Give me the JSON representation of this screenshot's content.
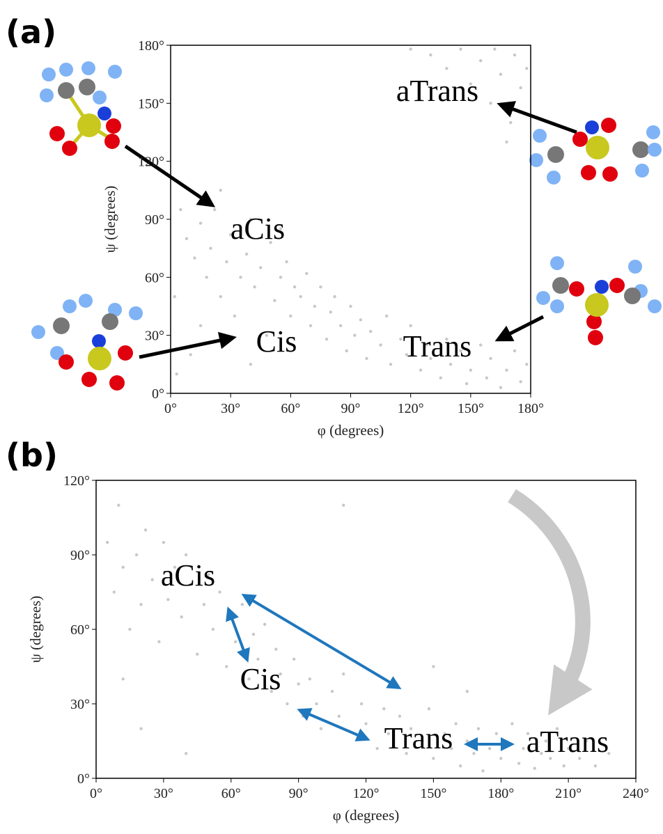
{
  "chart_data": [
    {
      "type": "scatter",
      "panel_label": "(a)",
      "x_label": "φ (degrees)",
      "y_label": "ψ (degrees)",
      "color": "#c8c8c8",
      "xlim": [
        0,
        180
      ],
      "ylim": [
        0,
        180
      ],
      "xticks": [
        {
          "value": 0,
          "label": "0°"
        },
        {
          "value": 30,
          "label": "30°"
        },
        {
          "value": 60,
          "label": "60°"
        },
        {
          "value": 90,
          "label": "90°"
        },
        {
          "value": 120,
          "label": "120°"
        },
        {
          "value": 150,
          "label": "150°"
        },
        {
          "value": 180,
          "label": "180°"
        }
      ],
      "yticks": [
        {
          "value": 0,
          "label": "0°"
        },
        {
          "value": 30,
          "label": "30°"
        },
        {
          "value": 60,
          "label": "60°"
        },
        {
          "value": 90,
          "label": "90°"
        },
        {
          "value": 120,
          "label": "120°"
        },
        {
          "value": 150,
          "label": "150°"
        },
        {
          "value": 180,
          "label": "180°"
        }
      ],
      "annotations": [
        "aTrans",
        "aCis",
        "Cis",
        "Trans"
      ],
      "x": [
        5,
        8,
        12,
        15,
        18,
        20,
        22,
        25,
        28,
        30,
        32,
        35,
        38,
        40,
        42,
        45,
        48,
        50,
        52,
        55,
        58,
        60,
        62,
        65,
        68,
        70,
        72,
        75,
        78,
        80,
        82,
        85,
        88,
        90,
        92,
        95,
        98,
        100,
        105,
        108,
        110,
        115,
        118,
        120,
        125,
        128,
        130,
        135,
        138,
        140,
        145,
        148,
        150,
        155,
        158,
        160,
        165,
        168,
        172,
        175,
        178,
        10,
        15,
        2,
        25,
        55,
        3,
        40,
        130,
        138,
        145,
        150,
        155,
        160,
        162,
        165,
        170,
        172,
        175,
        178,
        168,
        120,
        176
      ],
      "values": [
        95,
        80,
        70,
        88,
        60,
        75,
        95,
        50,
        68,
        82,
        40,
        60,
        72,
        90,
        55,
        65,
        30,
        78,
        48,
        60,
        68,
        40,
        55,
        50,
        62,
        35,
        45,
        55,
        28,
        42,
        50,
        35,
        22,
        45,
        30,
        38,
        18,
        32,
        25,
        40,
        15,
        28,
        20,
        35,
        12,
        25,
        18,
        8,
        28,
        15,
        22,
        5,
        12,
        25,
        8,
        18,
        3,
        12,
        22,
        6,
        15,
        20,
        35,
        50,
        105,
        85,
        10,
        15,
        175,
        168,
        178,
        160,
        172,
        150,
        178,
        165,
        140,
        175,
        158,
        168,
        130,
        178,
        145
      ]
    },
    {
      "type": "scatter",
      "panel_label": "(b)",
      "x_label": "φ (degrees)",
      "y_label": "ψ (degrees)",
      "color": "#c8c8c8",
      "xlim": [
        0,
        240
      ],
      "ylim": [
        0,
        120
      ],
      "xticks": [
        {
          "value": 0,
          "label": "0°"
        },
        {
          "value": 30,
          "label": "30°"
        },
        {
          "value": 60,
          "label": "60°"
        },
        {
          "value": 90,
          "label": "90°"
        },
        {
          "value": 120,
          "label": "120°"
        },
        {
          "value": 150,
          "label": "150°"
        },
        {
          "value": 180,
          "label": "180°"
        },
        {
          "value": 210,
          "label": "210°"
        },
        {
          "value": 240,
          "label": "240°"
        }
      ],
      "yticks": [
        {
          "value": 0,
          "label": "0°"
        },
        {
          "value": 30,
          "label": "30°"
        },
        {
          "value": 60,
          "label": "60°"
        },
        {
          "value": 90,
          "label": "90°"
        },
        {
          "value": 120,
          "label": "120°"
        }
      ],
      "annotations": [
        "aCis",
        "Cis",
        "Trans",
        "aTrans"
      ],
      "x": [
        5,
        8,
        10,
        12,
        15,
        18,
        20,
        22,
        25,
        28,
        30,
        32,
        35,
        38,
        40,
        42,
        45,
        48,
        50,
        52,
        55,
        58,
        60,
        62,
        65,
        68,
        70,
        72,
        75,
        78,
        80,
        82,
        85,
        88,
        90,
        92,
        95,
        98,
        100,
        105,
        108,
        110,
        115,
        118,
        120,
        125,
        128,
        130,
        135,
        138,
        140,
        145,
        148,
        150,
        155,
        158,
        160,
        162,
        165,
        168,
        170,
        172,
        175,
        178,
        180,
        182,
        185,
        188,
        190,
        192,
        195,
        198,
        200,
        202,
        205,
        208,
        210,
        215,
        218,
        222,
        228,
        110,
        150,
        20,
        40,
        12,
        165
      ],
      "values": [
        95,
        75,
        110,
        85,
        60,
        90,
        70,
        100,
        80,
        55,
        95,
        72,
        85,
        65,
        90,
        78,
        50,
        70,
        82,
        60,
        75,
        45,
        65,
        55,
        70,
        40,
        58,
        48,
        62,
        35,
        52,
        42,
        30,
        48,
        38,
        25,
        40,
        30,
        20,
        35,
        25,
        42,
        18,
        30,
        22,
        12,
        28,
        18,
        25,
        10,
        20,
        15,
        28,
        8,
        18,
        12,
        22,
        5,
        15,
        10,
        20,
        3,
        12,
        18,
        8,
        14,
        22,
        6,
        12,
        18,
        4,
        10,
        15,
        8,
        20,
        5,
        12,
        8,
        15,
        5,
        10,
        110,
        45,
        20,
        10,
        40,
        35
      ]
    }
  ]
}
